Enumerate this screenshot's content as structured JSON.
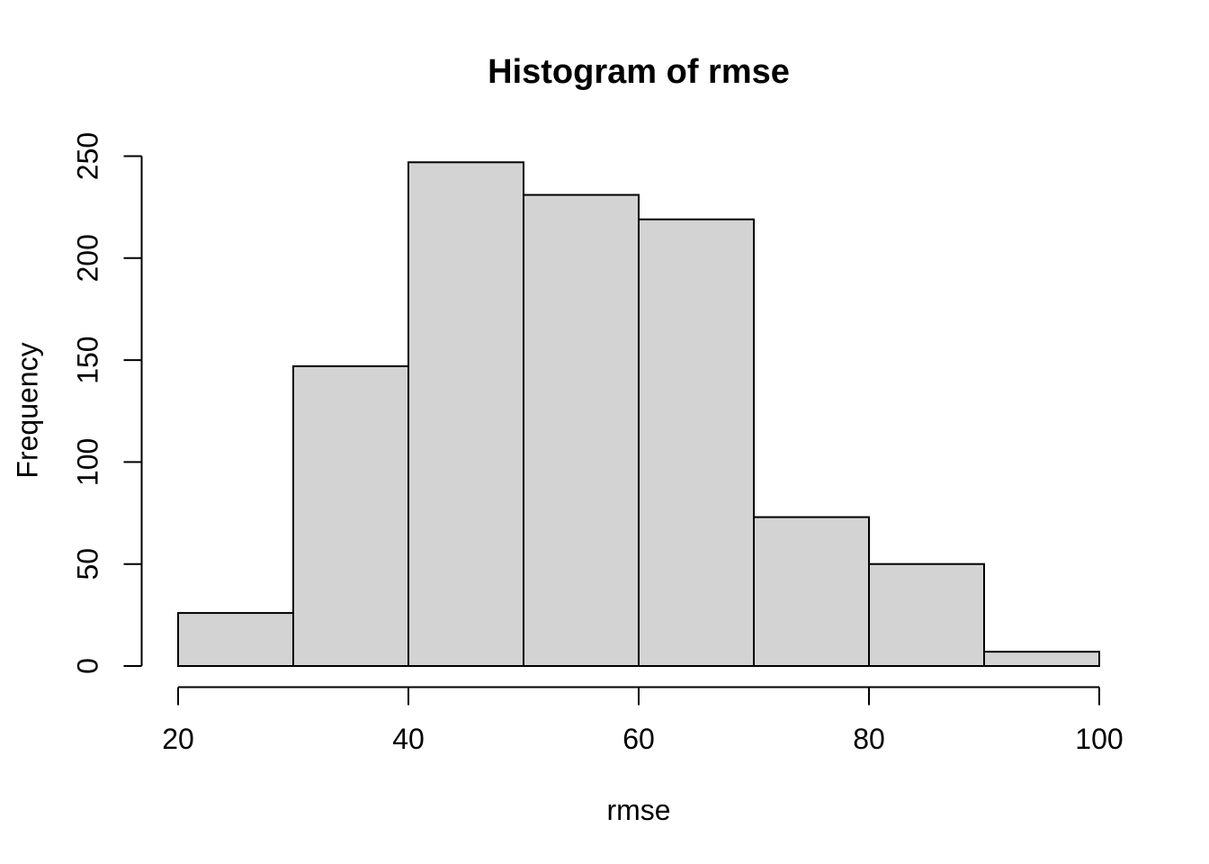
{
  "chart_data": {
    "type": "bar",
    "subtype": "histogram",
    "title": "Histogram of rmse",
    "xlabel": "rmse",
    "ylabel": "Frequency",
    "bin_edges": [
      20,
      30,
      40,
      50,
      60,
      70,
      80,
      90,
      100
    ],
    "counts": [
      26,
      147,
      247,
      231,
      219,
      73,
      50,
      7
    ],
    "x_ticks": [
      20,
      40,
      60,
      80,
      100
    ],
    "y_ticks": [
      0,
      50,
      100,
      150,
      200,
      250
    ],
    "xlim": [
      20,
      100
    ],
    "ylim": [
      0,
      250
    ],
    "grid": false,
    "legend": false,
    "colors": {
      "background": "#ffffff",
      "bar_fill": "#d3d3d3",
      "bar_stroke": "#000000",
      "axis": "#000000",
      "text": "#000000"
    }
  }
}
